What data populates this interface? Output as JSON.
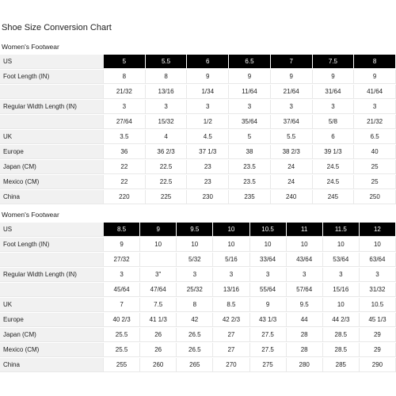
{
  "title": "Shoe Size Conversion Chart",
  "tables": [
    {
      "heading": "Women's Footwear",
      "rows": [
        [
          "US",
          "5",
          "5.5",
          "6",
          "6.5",
          "7",
          "7.5",
          "8"
        ],
        [
          "Foot Length (IN)",
          "8",
          "8",
          "9",
          "9",
          "9",
          "9",
          "9"
        ],
        [
          null,
          "21/32",
          "13/16",
          "1/34",
          "11/64",
          "21/64",
          "31/64",
          "41/64"
        ],
        [
          "Regular Width Length (IN)",
          "3",
          "3",
          "3",
          "3",
          "3",
          "3",
          "3"
        ],
        [
          null,
          "27/64",
          "15/32",
          "1/2",
          "35/64",
          "37/64",
          "5/8",
          "21/32"
        ],
        [
          "UK",
          "3.5",
          "4",
          "4.5",
          "5",
          "5.5",
          "6",
          "6.5"
        ],
        [
          "Europe",
          "36",
          "36 2/3",
          "37 1/3",
          "38",
          "38 2/3",
          "39 1/3",
          "40"
        ],
        [
          "Japan (CM)",
          "22",
          "22.5",
          "23",
          "23.5",
          "24",
          "24.5",
          "25"
        ],
        [
          "Mexico (CM)",
          "22",
          "22.5",
          "23",
          "23.5",
          "24",
          "24.5",
          "25"
        ],
        [
          "China",
          "220",
          "225",
          "230",
          "235",
          "240",
          "245",
          "250"
        ]
      ]
    },
    {
      "heading": "Women's Footwear",
      "rows": [
        [
          "US",
          "8.5",
          "9",
          "9.5",
          "10",
          "10.5",
          "11",
          "11.5",
          "12"
        ],
        [
          "Foot Length (IN)",
          "9",
          "10",
          "10",
          "10",
          "10",
          "10",
          "10",
          "10"
        ],
        [
          null,
          "27/32",
          null,
          "5/32",
          "5/16",
          "33/64",
          "43/64",
          "53/64",
          "63/64"
        ],
        [
          "Regular Width Length (IN)",
          "3",
          "3\"",
          "3",
          "3",
          "3",
          "3",
          "3",
          "3"
        ],
        [
          null,
          "45/64",
          "47/64",
          "25/32",
          "13/16",
          "55/64",
          "57/64",
          "15/16",
          "31/32"
        ],
        [
          "UK",
          "7",
          "7.5",
          "8",
          "8.5",
          "9",
          "9.5",
          "10",
          "10.5"
        ],
        [
          "Europe",
          "40 2/3",
          "41 1/3",
          "42",
          "42 2/3",
          "43 1/3",
          "44",
          "44 2/3",
          "45 1/3"
        ],
        [
          "Japan (CM)",
          "25.5",
          "26",
          "26.5",
          "27",
          "27.5",
          "28",
          "28.5",
          "29"
        ],
        [
          "Mexico (CM)",
          "25.5",
          "26",
          "26.5",
          "27",
          "27.5",
          "28",
          "28.5",
          "29"
        ],
        [
          "China",
          "255",
          "260",
          "265",
          "270",
          "275",
          "280",
          "285",
          "290"
        ]
      ]
    }
  ]
}
